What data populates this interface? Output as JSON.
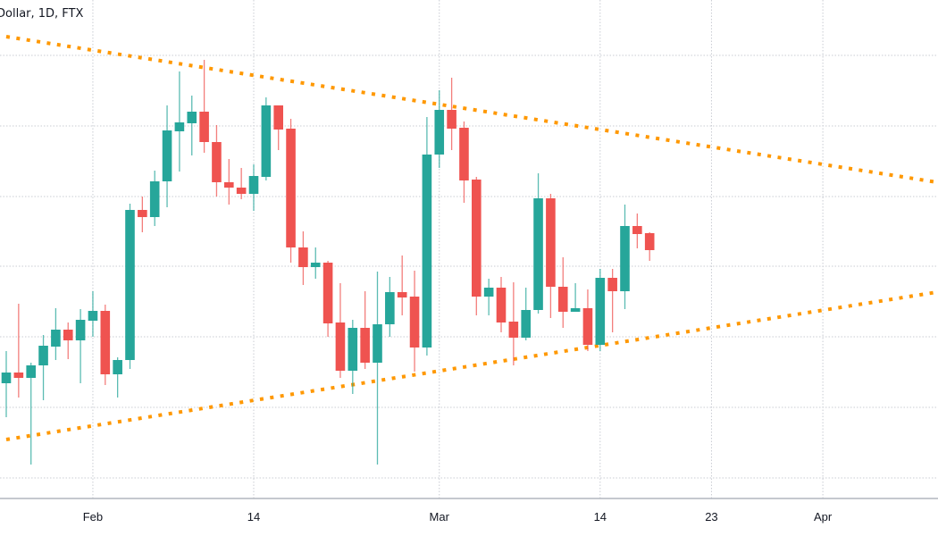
{
  "header": {
    "title": "Dollar, 1D, FTX"
  },
  "colors": {
    "up": "#26a69a",
    "down": "#ef5350",
    "trendline": "#ff9800",
    "grid": "#c9ccd3",
    "axis_text": "#131722"
  },
  "chart_data": {
    "type": "candlestick",
    "title": "Dollar, 1D, FTX",
    "xlabel": "",
    "ylabel": "",
    "x_range": [
      "2022-01-24",
      "2022-04-10"
    ],
    "y_axis_labels_visible": false,
    "ylim": [
      0,
      112
    ],
    "grid": true,
    "x_ticks": [
      {
        "date": "2022-02-01",
        "label": "Feb"
      },
      {
        "date": "2022-02-14",
        "label": "14"
      },
      {
        "date": "2022-03-01",
        "label": "Mar"
      },
      {
        "date": "2022-03-14",
        "label": "14"
      },
      {
        "date": "2022-03-23",
        "label": "23"
      },
      {
        "date": "2022-04-01",
        "label": "Apr"
      }
    ],
    "candles_ohlc": [
      [
        "2022-01-25",
        26.2,
        33.4,
        18.6,
        28.6
      ],
      [
        "2022-01-26",
        28.6,
        44,
        23,
        27.4
      ],
      [
        "2022-01-27",
        27.4,
        30.8,
        8,
        30.2
      ],
      [
        "2022-01-28",
        30.2,
        37,
        22.4,
        34.6
      ],
      [
        "2022-01-29",
        34.4,
        43,
        31.4,
        38.2
      ],
      [
        "2022-01-30",
        38.2,
        39.8,
        31.6,
        35.8
      ],
      [
        "2022-01-31",
        35.8,
        42.8,
        26.2,
        40.4
      ],
      [
        "2022-02-01",
        40.2,
        46.8,
        36.6,
        42.4
      ],
      [
        "2022-02-02",
        42.4,
        43.8,
        25.8,
        28.2
      ],
      [
        "2022-02-03",
        28.2,
        32,
        23,
        31.4
      ],
      [
        "2022-02-04",
        31.4,
        66.4,
        29.4,
        65
      ],
      [
        "2022-02-05",
        65,
        68,
        60,
        63.4
      ],
      [
        "2022-02-06",
        63.4,
        73.8,
        61.4,
        71.4
      ],
      [
        "2022-02-07",
        71.4,
        88.4,
        65.6,
        82.8
      ],
      [
        "2022-02-08",
        82.6,
        96,
        73.6,
        84.6
      ],
      [
        "2022-02-09",
        84.4,
        90.6,
        77.2,
        87
      ],
      [
        "2022-02-10",
        87,
        98.6,
        77.8,
        80.2
      ],
      [
        "2022-02-11",
        80.2,
        84,
        68,
        71.2
      ],
      [
        "2022-02-12",
        71.2,
        76.4,
        66.2,
        70
      ],
      [
        "2022-02-13",
        70,
        74.4,
        67.4,
        68.6
      ],
      [
        "2022-02-14",
        68.6,
        75.2,
        64.8,
        72.6
      ],
      [
        "2022-02-15",
        72.4,
        90.2,
        71.6,
        88.4
      ],
      [
        "2022-02-16",
        88.4,
        88.4,
        78.4,
        83
      ],
      [
        "2022-02-17",
        83.2,
        85.4,
        53.2,
        56.6
      ],
      [
        "2022-02-18",
        56.6,
        60.2,
        48.2,
        52.2
      ],
      [
        "2022-02-19",
        52.2,
        56.6,
        49.6,
        53.2
      ],
      [
        "2022-02-20",
        53.2,
        53.6,
        36.6,
        39.6
      ],
      [
        "2022-02-21",
        39.8,
        48.6,
        27.4,
        29
      ],
      [
        "2022-02-22",
        29,
        40.4,
        23.8,
        38.6
      ],
      [
        "2022-02-23",
        38.6,
        46.8,
        29.4,
        30.8
      ],
      [
        "2022-02-24",
        30.8,
        51.2,
        8,
        39.4
      ],
      [
        "2022-02-25",
        39.4,
        50,
        36.6,
        46.6
      ],
      [
        "2022-02-26",
        46.6,
        54.8,
        41.4,
        45.4
      ],
      [
        "2022-02-27",
        45.6,
        51.4,
        28.8,
        34.2
      ],
      [
        "2022-02-28",
        34.2,
        85.8,
        32.4,
        77.4
      ],
      [
        "2022-03-01",
        77.4,
        91.8,
        74.4,
        87.4
      ],
      [
        "2022-03-02",
        87.4,
        94.6,
        78.4,
        83.2
      ],
      [
        "2022-03-03",
        83.4,
        84.8,
        66.6,
        71.6
      ],
      [
        "2022-03-04",
        71.8,
        72.4,
        41.4,
        45.6
      ],
      [
        "2022-03-05",
        45.6,
        49.6,
        41.4,
        47.6
      ],
      [
        "2022-03-06",
        47.6,
        50,
        37.6,
        39.8
      ],
      [
        "2022-03-07",
        40,
        48.8,
        30.2,
        36.4
      ],
      [
        "2022-03-08",
        36.4,
        47.6,
        35.8,
        42.6
      ],
      [
        "2022-03-09",
        42.6,
        73.2,
        41.8,
        67.6
      ],
      [
        "2022-03-10",
        67.6,
        68.6,
        40.8,
        47.8
      ],
      [
        "2022-03-11",
        47.8,
        54.4,
        38.6,
        42.2
      ],
      [
        "2022-03-12",
        42.2,
        48.6,
        42.2,
        43
      ],
      [
        "2022-03-13",
        43,
        47.2,
        33.4,
        34.8
      ],
      [
        "2022-03-14",
        34.8,
        51.8,
        33.4,
        49.8
      ],
      [
        "2022-03-15",
        49.8,
        51.8,
        37.6,
        46.8
      ],
      [
        "2022-03-16",
        46.8,
        66.2,
        42.8,
        61.4
      ],
      [
        "2022-03-17",
        61.4,
        64.2,
        56.4,
        59.6
      ],
      [
        "2022-03-18",
        59.8,
        60,
        53.6,
        56
      ]
    ],
    "trendlines": [
      {
        "style": "dotted",
        "from": [
          "2022-01-25",
          103.8
        ],
        "to": [
          "2022-04-10",
          71.3
        ]
      },
      {
        "style": "dotted",
        "from": [
          "2022-01-25",
          13.6
        ],
        "to": [
          "2022-04-10",
          46.5
        ]
      }
    ]
  }
}
